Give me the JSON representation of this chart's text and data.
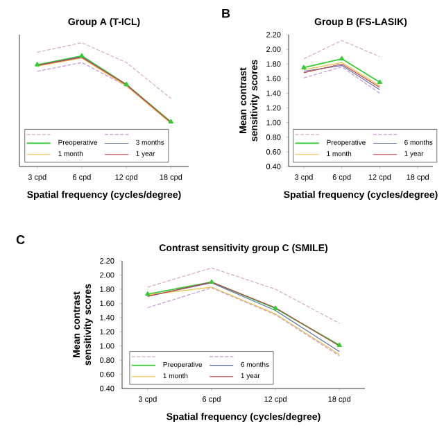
{
  "chart_data": [
    {
      "type": "line",
      "title": "Group A (T-ICL)",
      "xlabel": "Spatial frequency (cycles/degree)",
      "categories": [
        "3 cpd",
        "6 cpd",
        "12 cpd",
        "18 cpd"
      ],
      "ylim": [
        0.4,
        2.2
      ],
      "tick_labels": "x",
      "legend": "bottom left",
      "series": [
        {
          "color": "#d8a8c0",
          "line_style": "dashed",
          "values": [
            1.96,
            2.09,
            1.82,
            1.33
          ]
        },
        {
          "color": "#c890d8",
          "line_style": "dashed",
          "values": [
            1.7,
            1.82,
            1.5,
            0.99
          ]
        },
        {
          "name": "Preoperative",
          "color": "#33cc33",
          "marker": "triangle",
          "values": [
            1.79,
            1.91,
            1.52,
            1.01
          ]
        },
        {
          "name": "3 months",
          "color": "#5a6fa8",
          "values": [
            1.78,
            1.9,
            1.51,
            1.0
          ]
        },
        {
          "name": "1 month",
          "color": "#e8c040",
          "values": [
            1.77,
            1.88,
            1.5,
            0.99
          ]
        },
        {
          "name": "1 year",
          "color": "#c04050",
          "values": [
            1.78,
            1.89,
            1.52,
            1.0
          ]
        }
      ]
    },
    {
      "type": "line",
      "title": "Group B (FS-LASIK)",
      "xlabel": "Spatial frequency (cycles/degree)",
      "ylabel": "Mean contrast sensitivity scores",
      "annotations": [
        "B"
      ],
      "categories": [
        "3 cpd",
        "6 cpd",
        "12 cpd",
        "18 cpd"
      ],
      "ylim": [
        0.4,
        2.2
      ],
      "yticks": [
        {
          "value": 0.4,
          "label": "0.40"
        },
        {
          "value": 0.6,
          "label": "0.60"
        },
        {
          "value": 0.8,
          "label": "0.80"
        },
        {
          "value": 1.0,
          "label": "1.00"
        },
        {
          "value": 1.2,
          "label": "1.20"
        },
        {
          "value": 1.4,
          "label": "1.40"
        },
        {
          "value": 1.6,
          "label": "1.60"
        },
        {
          "value": 1.8,
          "label": "1.80"
        },
        {
          "value": 2.0,
          "label": "2.00"
        },
        {
          "value": 2.2,
          "label": "2.20"
        }
      ],
      "legend": "bottom left",
      "series": [
        {
          "color": "#d8a8c0",
          "line_style": "dashed",
          "values": [
            1.87,
            2.12,
            1.9,
            null
          ]
        },
        {
          "color": "#c890d8",
          "line_style": "dashed",
          "values": [
            1.61,
            1.76,
            1.4,
            null
          ]
        },
        {
          "name": "Preoperative",
          "color": "#33cc33",
          "marker": "triangle",
          "values": [
            1.75,
            1.87,
            1.55,
            null
          ]
        },
        {
          "name": "6 months",
          "color": "#5a6fa8",
          "values": [
            1.7,
            1.78,
            1.45,
            null
          ]
        },
        {
          "name": "1 month",
          "color": "#e8c040",
          "values": [
            1.72,
            1.82,
            1.5,
            null
          ]
        },
        {
          "name": "1 year",
          "color": "#c04050",
          "values": [
            1.68,
            1.8,
            1.48,
            null
          ]
        }
      ]
    },
    {
      "type": "line",
      "title": "Contrast sensitivity group C (SMILE)",
      "xlabel": "Spatial frequency (cycles/degree)",
      "ylabel": "Mean contrast sensitivity scores",
      "annotations": [
        "C"
      ],
      "categories": [
        "3 cpd",
        "6 cpd",
        "12 cpd",
        "18 cpd"
      ],
      "ylim": [
        0.4,
        2.2
      ],
      "yticks": [
        {
          "value": 0.4,
          "label": "0.40"
        },
        {
          "value": 0.6,
          "label": "0.60"
        },
        {
          "value": 0.8,
          "label": "0.80"
        },
        {
          "value": 1.0,
          "label": "1.00"
        },
        {
          "value": 1.2,
          "label": "1.20"
        },
        {
          "value": 1.4,
          "label": "1.40"
        },
        {
          "value": 1.6,
          "label": "1.60"
        },
        {
          "value": 1.8,
          "label": "1.80"
        },
        {
          "value": 2.0,
          "label": "2.00"
        },
        {
          "value": 2.2,
          "label": "2.20"
        }
      ],
      "legend": "bottom left",
      "series": [
        {
          "color": "#d8a8c0",
          "line_style": "dashed",
          "values": [
            1.83,
            2.1,
            1.8,
            1.32
          ]
        },
        {
          "color": "#c890d8",
          "line_style": "dashed",
          "values": [
            1.54,
            1.82,
            1.44,
            0.86
          ]
        },
        {
          "name": "Preoperative",
          "color": "#33cc33",
          "marker": "triangle",
          "values": [
            1.73,
            1.9,
            1.53,
            1.01
          ]
        },
        {
          "name": "6 months",
          "color": "#5a6fa8",
          "values": [
            1.7,
            1.89,
            1.5,
            0.92
          ]
        },
        {
          "name": "1 month",
          "color": "#e8c040",
          "values": [
            1.72,
            1.83,
            1.45,
            0.88
          ]
        },
        {
          "name": "1 year",
          "color": "#c04050",
          "values": [
            1.7,
            1.9,
            1.54,
            1.0
          ]
        }
      ]
    }
  ]
}
